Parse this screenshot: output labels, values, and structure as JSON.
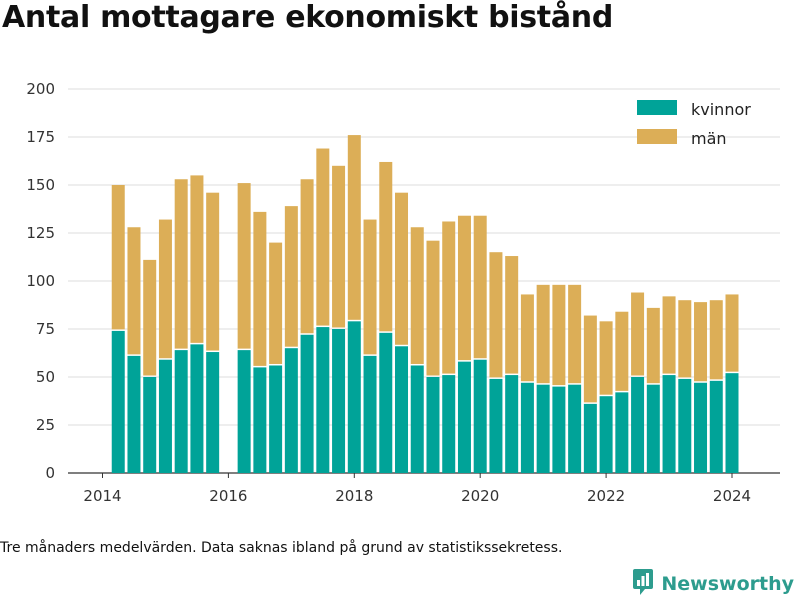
{
  "title": "Antal mottagare ekonomiskt bistånd",
  "footnote": "Tre månaders medelvärden. Data saknas ibland på grund av statistikssekretess.",
  "brand": {
    "name": "Newsworthy"
  },
  "colors": {
    "kvinnor": "#00a398",
    "man": "#dcae57",
    "grid": "#dddddd",
    "axis": "#333333",
    "brand": "#2d9c8e"
  },
  "chart_data": {
    "type": "bar",
    "stacked": true,
    "x_unit": "year (quarter position)",
    "xlim": [
      2014,
      2024.75
    ],
    "ylim": [
      0,
      200
    ],
    "yticks": [
      0,
      25,
      50,
      75,
      100,
      125,
      150,
      175,
      200
    ],
    "xticks": [
      2014,
      2016,
      2018,
      2020,
      2022,
      2024
    ],
    "grid": true,
    "legend_position": "top-right",
    "x": [
      2014.25,
      2014.5,
      2014.75,
      2015.0,
      2015.25,
      2015.5,
      2015.75,
      2016.25,
      2016.5,
      2016.75,
      2017.0,
      2017.25,
      2017.5,
      2017.75,
      2018.0,
      2018.25,
      2018.5,
      2018.75,
      2019.0,
      2019.25,
      2019.5,
      2019.75,
      2020.0,
      2020.25,
      2020.5,
      2020.75,
      2021.0,
      2021.25,
      2021.5,
      2021.75,
      2022.0,
      2022.25,
      2022.5,
      2022.75,
      2023.0,
      2023.25,
      2023.5,
      2023.75,
      2024.0
    ],
    "series": [
      {
        "name": "kvinnor",
        "values": [
          74,
          61,
          50,
          59,
          64,
          67,
          63,
          64,
          55,
          56,
          65,
          72,
          76,
          75,
          79,
          61,
          73,
          66,
          56,
          50,
          51,
          58,
          59,
          49,
          51,
          47,
          46,
          45,
          46,
          36,
          40,
          42,
          50,
          46,
          51,
          49,
          47,
          48,
          52
        ]
      },
      {
        "name": "män",
        "values": [
          76,
          67,
          61,
          73,
          89,
          88,
          83,
          87,
          81,
          64,
          74,
          81,
          93,
          85,
          97,
          71,
          89,
          80,
          72,
          71,
          80,
          76,
          75,
          66,
          62,
          46,
          52,
          53,
          52,
          46,
          39,
          42,
          44,
          40,
          41,
          41,
          42,
          42,
          41
        ]
      }
    ]
  }
}
